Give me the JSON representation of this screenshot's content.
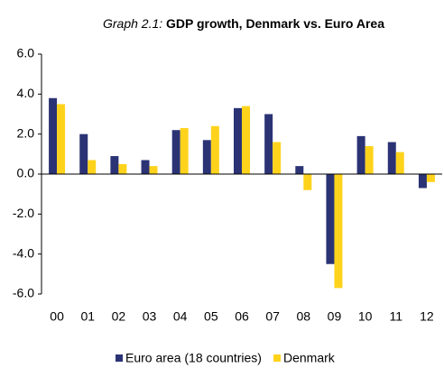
{
  "chart_data": {
    "type": "bar",
    "title_number": "Graph 2.1:",
    "title": "GDP growth, Denmark vs. Euro Area",
    "categories": [
      "00",
      "01",
      "02",
      "03",
      "04",
      "05",
      "06",
      "07",
      "08",
      "09",
      "10",
      "11",
      "12"
    ],
    "series": [
      {
        "name": "Euro area (18 countries)",
        "color": "#2b3375",
        "values": [
          3.8,
          2.0,
          0.9,
          0.7,
          2.2,
          1.7,
          3.3,
          3.0,
          0.4,
          -4.5,
          1.9,
          1.6,
          -0.7
        ]
      },
      {
        "name": "Denmark",
        "color": "#ffd31c",
        "values": [
          3.5,
          0.7,
          0.5,
          0.4,
          2.3,
          2.4,
          3.4,
          1.6,
          -0.8,
          -5.7,
          1.4,
          1.1,
          -0.4
        ]
      }
    ],
    "ylim": [
      -6,
      6
    ],
    "yticks": [
      {
        "value": -6,
        "label": "-6.0"
      },
      {
        "value": -4,
        "label": "-4.0"
      },
      {
        "value": -2,
        "label": "-2.0"
      },
      {
        "value": 0,
        "label": "0.0"
      },
      {
        "value": 2,
        "label": "2.0"
      },
      {
        "value": 4,
        "label": "4.0"
      },
      {
        "value": 6,
        "label": "6.0"
      }
    ],
    "legend": "bottom"
  }
}
